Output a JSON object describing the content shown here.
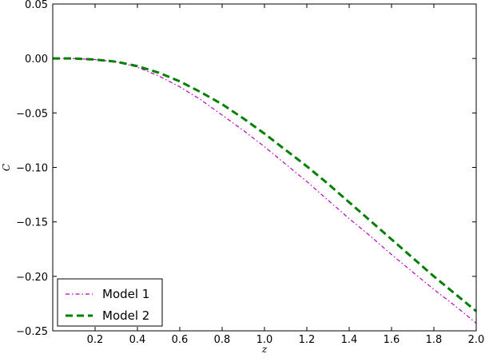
{
  "chart_data": {
    "type": "line",
    "title": "",
    "xlabel": "z",
    "ylabel": "C",
    "xlim": [
      0.0,
      2.0
    ],
    "ylim": [
      -0.25,
      0.05
    ],
    "xticks": [
      0.2,
      0.4,
      0.6,
      0.8,
      1.0,
      1.2,
      1.4,
      1.6,
      1.8,
      2.0
    ],
    "xtick_labels": [
      "0.2",
      "0.4",
      "0.6",
      "0.8",
      "1.0",
      "1.2",
      "1.4",
      "1.6",
      "1.8",
      "2.0"
    ],
    "yticks": [
      0.05,
      0.0,
      -0.05,
      -0.1,
      -0.15,
      -0.2,
      -0.25
    ],
    "ytick_labels": [
      "0.05",
      "0.00",
      "−0.05",
      "−0.10",
      "−0.15",
      "−0.20",
      "−0.25"
    ],
    "grid": false,
    "legend_position": "lower-left",
    "series": [
      {
        "name": "Model 1",
        "color": "#bf00bf",
        "line_style": "dash-dot",
        "x": [
          0.0,
          0.1,
          0.2,
          0.3,
          0.4,
          0.5,
          0.6,
          0.7,
          0.8,
          0.9,
          1.0,
          1.1,
          1.2,
          1.3,
          1.4,
          1.5,
          1.6,
          1.7,
          1.8,
          1.9,
          2.0
        ],
        "y": [
          0.0,
          0.0,
          -0.001,
          -0.003,
          -0.008,
          -0.016,
          -0.026,
          -0.038,
          -0.052,
          -0.066,
          -0.081,
          -0.097,
          -0.113,
          -0.13,
          -0.147,
          -0.163,
          -0.18,
          -0.196,
          -0.212,
          -0.227,
          -0.243
        ]
      },
      {
        "name": "Model 2",
        "color": "#007f00",
        "line_style": "dashed",
        "x": [
          0.0,
          0.1,
          0.2,
          0.3,
          0.4,
          0.5,
          0.6,
          0.7,
          0.8,
          0.9,
          1.0,
          1.1,
          1.2,
          1.3,
          1.4,
          1.5,
          1.6,
          1.7,
          1.8,
          1.9,
          2.0
        ],
        "y": [
          0.0,
          0.0,
          -0.001,
          -0.003,
          -0.007,
          -0.013,
          -0.021,
          -0.031,
          -0.042,
          -0.055,
          -0.069,
          -0.084,
          -0.099,
          -0.115,
          -0.132,
          -0.149,
          -0.166,
          -0.183,
          -0.2,
          -0.216,
          -0.232
        ]
      }
    ]
  }
}
